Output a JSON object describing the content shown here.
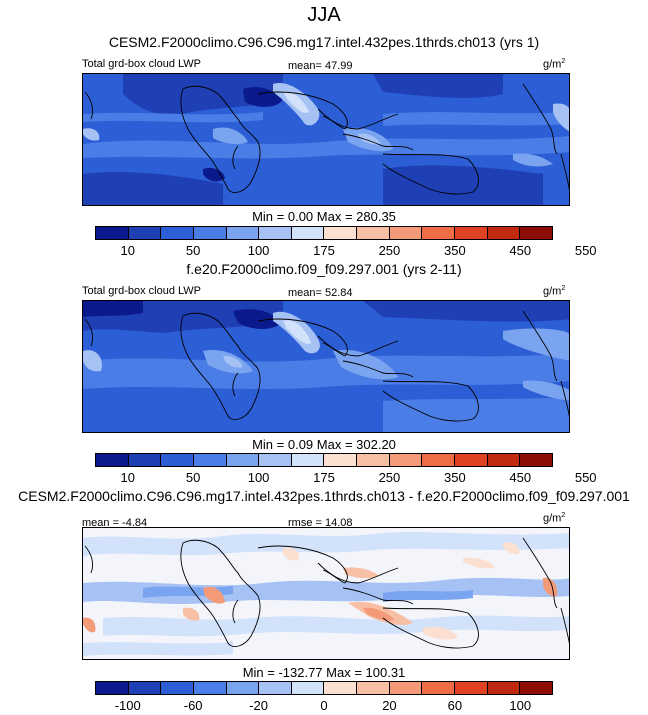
{
  "title": "JJA",
  "panels": [
    {
      "title": "CESM2.F2000climo.C96.C96.mg17.intel.432pes.1thrds.ch013 (yrs 1)",
      "left_label": "Total grd-box cloud LWP",
      "center_label": "mean=  47.99",
      "units": "g/m",
      "units_exp": "2",
      "min_max": "Min =    0.00 Max = 280.35",
      "colorbar_ticks": [
        "10",
        "50",
        "100",
        "175",
        "250",
        "350",
        "450",
        "550"
      ],
      "colorbar_colors": [
        "#0a1a8c",
        "#1f3fb5",
        "#2c5ed6",
        "#4a7ee6",
        "#7aa4ef",
        "#a6c2f5",
        "#d2e2fb",
        "#fbe0d1",
        "#f7c0a4",
        "#f39a78",
        "#ee6d45",
        "#df4222",
        "#c02a10",
        "#8c0d05"
      ]
    },
    {
      "title": "f.e20.F2000climo.f09_f09.297.001 (yrs 2-11)",
      "left_label": "Total grd-box cloud LWP",
      "center_label": "mean=  52.84",
      "units": "g/m",
      "units_exp": "2",
      "min_max": "Min =    0.09 Max = 302.20",
      "colorbar_ticks": [
        "10",
        "50",
        "100",
        "175",
        "250",
        "350",
        "450",
        "550"
      ],
      "colorbar_colors": [
        "#0a1a8c",
        "#1f3fb5",
        "#2c5ed6",
        "#4a7ee6",
        "#7aa4ef",
        "#a6c2f5",
        "#d2e2fb",
        "#fbe0d1",
        "#f7c0a4",
        "#f39a78",
        "#ee6d45",
        "#df4222",
        "#c02a10",
        "#8c0d05"
      ]
    },
    {
      "title": "CESM2.F2000climo.C96.C96.mg17.intel.432pes.1thrds.ch013 - f.e20.F2000climo.f09_f09.297.001",
      "left_label": "mean =  -4.84",
      "center_label": "rmse =  14.08",
      "units": "g/m",
      "units_exp": "2",
      "min_max": "Min = -132.77 Max = 100.31",
      "colorbar_ticks": [
        "-100",
        "-60",
        "-20",
        "0",
        "20",
        "60",
        "100"
      ],
      "colorbar_colors": [
        "#0a1a8c",
        "#1f3fb5",
        "#2c5ed6",
        "#4a7ee6",
        "#7aa4ef",
        "#a6c2f5",
        "#d2e2fb",
        "#fbe0d1",
        "#f7c0a4",
        "#f39a78",
        "#ee6d45",
        "#df4222",
        "#c02a10",
        "#8c0d05"
      ]
    }
  ]
}
